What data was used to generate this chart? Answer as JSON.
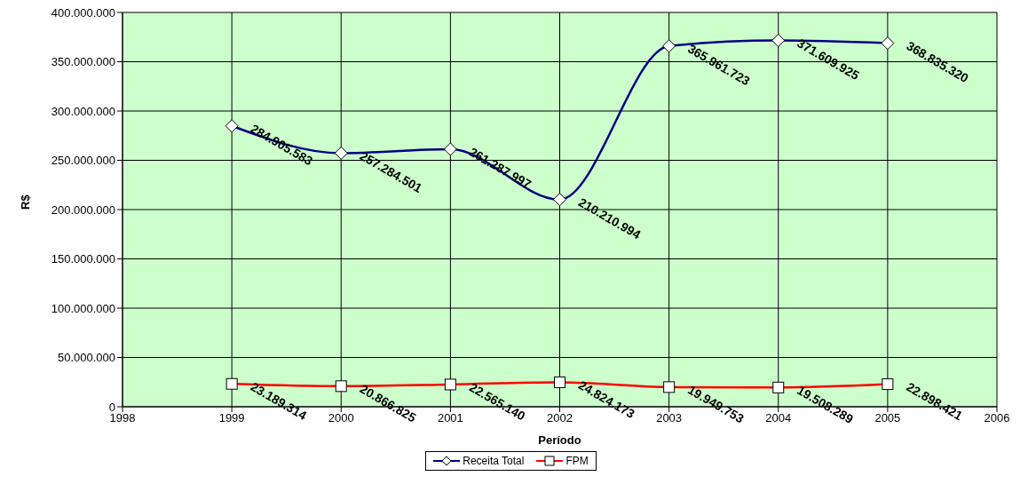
{
  "chart_data": {
    "type": "line",
    "xlabel": "Período",
    "ylabel": "R$",
    "x": [
      1999,
      2000,
      2001,
      2002,
      2003,
      2004,
      2005
    ],
    "series": [
      {
        "name": "Receita Total",
        "color": "#000080",
        "marker": "diamond",
        "values": [
          284905583,
          257284501,
          261287997,
          210210994,
          365961723,
          371609925,
          368835320
        ],
        "value_labels": [
          "284.905.583",
          "257.284.501",
          "261.287.997",
          "210.210.994",
          "365.961.723",
          "371.609.925",
          "368.835.320"
        ]
      },
      {
        "name": "FPM",
        "color": "#ff0000",
        "marker": "square",
        "values": [
          23189314,
          20866825,
          22565140,
          24824173,
          19949753,
          19508289,
          22898421
        ],
        "value_labels": [
          "23.189.314",
          "20.866.825",
          "22.565.140",
          "24.824.173",
          "19.949.753",
          "19.508.289",
          "22.898.421"
        ]
      }
    ],
    "xlim": [
      1998,
      2006
    ],
    "xticks": [
      1998,
      1999,
      2000,
      2001,
      2002,
      2003,
      2004,
      2005,
      2006
    ],
    "ylim": [
      0,
      400000000
    ],
    "yticks": [
      0,
      {
        "value": 50000000,
        "label": "50.000.000"
      },
      {
        "value": 100000000,
        "label": "100.000.000"
      },
      {
        "value": 150000000,
        "label": "150.000.000"
      },
      {
        "value": 200000000,
        "label": "200.000.000"
      },
      {
        "value": 250000000,
        "label": "250.000.000"
      },
      {
        "value": 300000000,
        "label": "300.000.000"
      },
      {
        "value": 350000000,
        "label": "350.000.000"
      },
      {
        "value": 400000000,
        "label": "400.000.000"
      }
    ],
    "grid": true,
    "legend": "bottom",
    "line_style": "solid"
  }
}
